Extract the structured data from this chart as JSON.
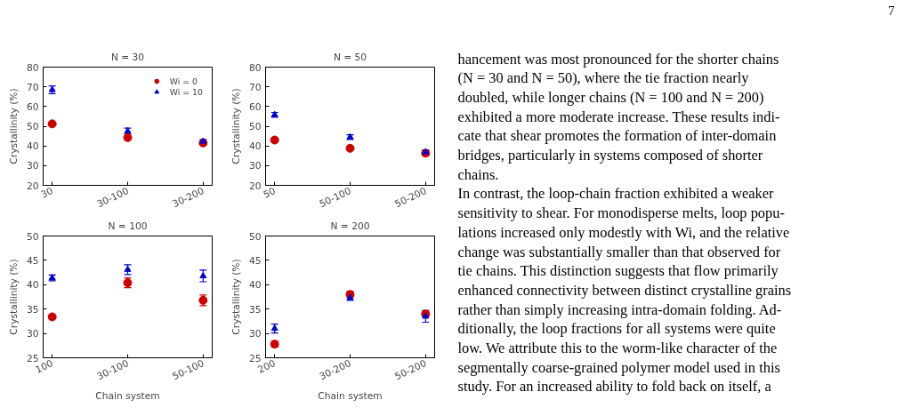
{
  "chart_data": [
    {
      "type": "scatter",
      "title": "N = 30",
      "ylabel": "Crystallinity (%)",
      "categories": [
        "30",
        "30-100",
        "30-200"
      ],
      "ylim": [
        20,
        80
      ],
      "yticks": [
        20,
        30,
        40,
        50,
        60,
        70,
        80
      ],
      "legend": "top right",
      "grid": false,
      "series": [
        {
          "name": "Wi = 0",
          "color": "#cc0000",
          "marker": "circle",
          "values": [
            51.2,
            44.2,
            41.5
          ],
          "errors": [
            0.8,
            0.8,
            1.0
          ]
        },
        {
          "name": "Wi = 10",
          "color": "#0000cc",
          "marker": "triangle",
          "values": [
            68.5,
            47.5,
            42.3
          ],
          "errors": [
            2.0,
            1.5,
            1.0
          ]
        }
      ]
    },
    {
      "type": "scatter",
      "title": "N = 50",
      "ylabel": "Crystallinity (%)",
      "categories": [
        "50",
        "50-100",
        "50-200"
      ],
      "ylim": [
        20,
        80
      ],
      "yticks": [
        20,
        30,
        40,
        50,
        60,
        70,
        80
      ],
      "grid": false,
      "series": [
        {
          "color": "#cc0000",
          "marker": "circle",
          "values": [
            43.0,
            38.8,
            36.3
          ],
          "errors": [
            0.8,
            0.8,
            1.2
          ]
        },
        {
          "color": "#0000cc",
          "marker": "triangle",
          "values": [
            55.8,
            44.5,
            36.8
          ],
          "errors": [
            1.2,
            1.2,
            1.2
          ]
        }
      ]
    },
    {
      "type": "scatter",
      "title": "N = 100",
      "xlabel": "Chain system",
      "ylabel": "Crystallinity (%)",
      "categories": [
        "100",
        "30-100",
        "50-100"
      ],
      "ylim": [
        25,
        50
      ],
      "yticks": [
        25,
        30,
        35,
        40,
        45,
        50
      ],
      "grid": false,
      "series": [
        {
          "color": "#cc0000",
          "marker": "circle",
          "values": [
            33.4,
            40.4,
            36.8
          ],
          "errors": [
            0.4,
            1.0,
            1.1
          ]
        },
        {
          "color": "#0000cc",
          "marker": "triangle",
          "values": [
            41.4,
            43.1,
            41.8
          ],
          "errors": [
            0.6,
            1.0,
            1.2
          ]
        }
      ]
    },
    {
      "type": "scatter",
      "title": "N = 200",
      "xlabel": "Chain system",
      "ylabel": "Crystallinity (%)",
      "categories": [
        "200",
        "30-200",
        "50-200"
      ],
      "ylim": [
        25,
        50
      ],
      "yticks": [
        25,
        30,
        35,
        40,
        45,
        50
      ],
      "grid": false,
      "series": [
        {
          "color": "#cc0000",
          "marker": "circle",
          "values": [
            27.8,
            38.0,
            34.0
          ],
          "errors": [
            0.6,
            0.6,
            0.6
          ]
        },
        {
          "color": "#0000cc",
          "marker": "triangle",
          "values": [
            31.0,
            37.3,
            33.5
          ],
          "errors": [
            0.9,
            0.5,
            1.2
          ]
        }
      ]
    },
    {
      "type": "other",
      "title": "7",
      "annotations": [
        "hancement was most pronounced for the shorter chains",
        "(N = 30 and N = 50), where the tie fraction nearly",
        "doubled, while longer chains (N = 100 and N = 200)",
        "exhibited a more moderate increase. These results indi-",
        "cate that shear promotes the formation of inter-domain",
        "bridges, particularly in systems composed of shorter",
        "chains.",
        "In contrast, the loop-chain fraction exhibited a weaker",
        "sensitivity to shear. For monodisperse melts, loop popu-",
        "lations increased only modestly with Wi, and the relative",
        "change was substantially smaller than that observed for",
        "tie chains. This distinction suggests that flow primarily",
        "enhanced connectivity between distinct crystalline grains",
        "rather than simply increasing intra-domain folding. Ad-",
        "ditionally, the loop fractions for all systems were quite",
        "low. We attribute this to the worm-like character of the",
        "segmentally coarse-grained polymer model used in this",
        "study. For an increased ability to fold back on itself, a"
      ]
    }
  ]
}
